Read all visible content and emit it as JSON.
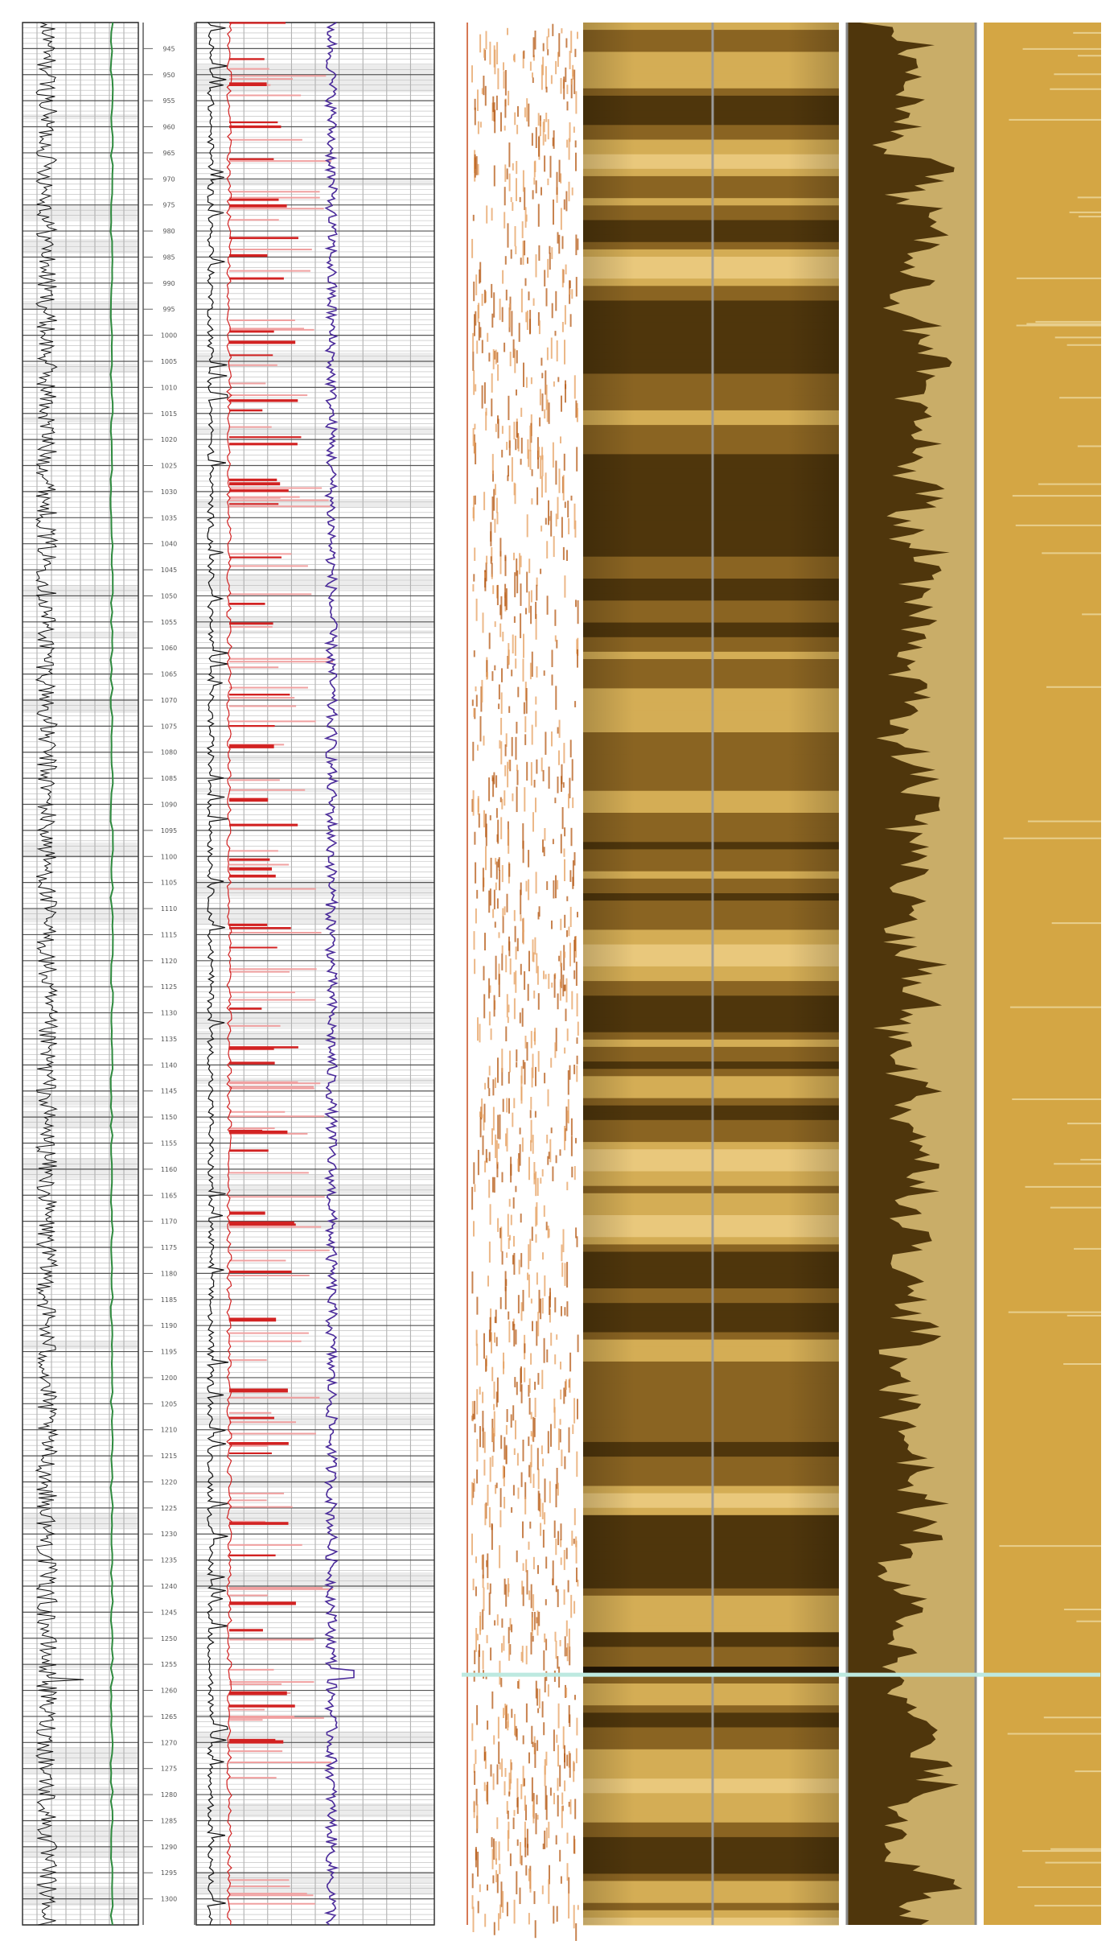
{
  "chart_data": {
    "type": "well-log",
    "title": "",
    "depth_axis": {
      "min": 940,
      "max": 1305,
      "tick_labels": [
        "945",
        "950",
        "955",
        "960",
        "965",
        "970",
        "975",
        "980",
        "985",
        "990",
        "995",
        "1000",
        "1005",
        "1010",
        "1015",
        "1020",
        "1025",
        "1030",
        "1035",
        "1040",
        "1045",
        "1050",
        "1055",
        "1060",
        "1065",
        "1070",
        "1075",
        "1080",
        "1085",
        "1090",
        "1095",
        "1100",
        "1105",
        "1110",
        "1115",
        "1120",
        "1125",
        "1130",
        "1135",
        "1140",
        "1145",
        "1150",
        "1155",
        "1160",
        "1165",
        "1170",
        "1175",
        "1180",
        "1185",
        "1190",
        "1195",
        "1200",
        "1205",
        "1210",
        "1215",
        "1220",
        "1225",
        "1230",
        "1235",
        "1240",
        "1245",
        "1250",
        "1255",
        "1260",
        "1265",
        "1270",
        "1275",
        "1280",
        "1285",
        "1290",
        "1295",
        "1300"
      ]
    },
    "tracks": [
      {
        "name": "track-1",
        "content": "curves",
        "curves": [
          {
            "name": "noisy-curve",
            "color": "#111111"
          },
          {
            "name": "baseline-curve",
            "color": "#2e8b3e"
          }
        ]
      },
      {
        "name": "track-2",
        "content": "curves",
        "curves": [
          {
            "name": "black-curve",
            "color": "#111111"
          },
          {
            "name": "red-curve",
            "color": "#d22222"
          },
          {
            "name": "pink-curve",
            "color": "#f0a0a0"
          },
          {
            "name": "purple-curve",
            "color": "#4a2a9a"
          }
        ]
      },
      {
        "name": "track-3",
        "content": "wiggle-image",
        "colors": [
          "#b55a14",
          "#e6a060"
        ]
      },
      {
        "name": "track-4",
        "content": "image-log",
        "colors": [
          "#4f360c",
          "#d4ad55",
          "#e9c87c"
        ]
      },
      {
        "name": "track-5",
        "content": "filled-profile",
        "colors": [
          "#4f360c",
          "#c9ad68"
        ]
      },
      {
        "name": "track-6",
        "content": "image-log",
        "colors": [
          "#d4a644",
          "#e8cf8d"
        ]
      }
    ],
    "markers": [
      {
        "name": "boundary",
        "depth": 1257,
        "color": "#bde9e0"
      }
    ]
  }
}
